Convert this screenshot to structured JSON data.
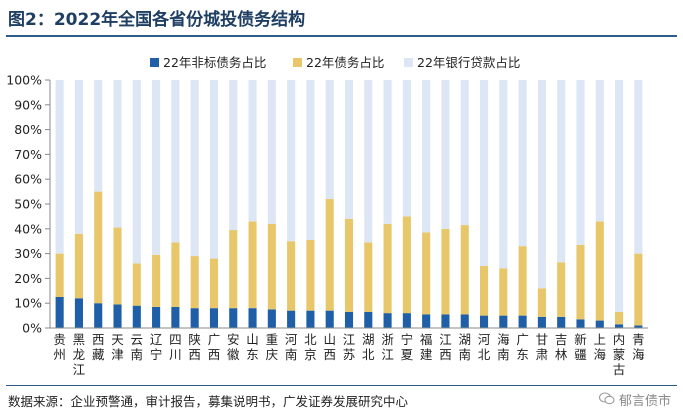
{
  "header": {
    "title": "图2：2022年全国各省份城投债务结构"
  },
  "footer": {
    "source": "数据来源：企业预警通，审计报告，募集说明书，广发证券发展研究中心",
    "watermark": "郁言债市"
  },
  "chart_data": {
    "type": "bar",
    "stacked": true,
    "categories": [
      "贵州",
      "黑龙江",
      "西藏",
      "天津",
      "云南",
      "辽宁",
      "四川",
      "陕西",
      "广西",
      "安徽",
      "山东",
      "重庆",
      "河南",
      "北京",
      "山西",
      "江苏",
      "湖北",
      "浙江",
      "宁夏",
      "福建",
      "江西",
      "湖南",
      "河北",
      "海南",
      "广东",
      "甘肃",
      "吉林",
      "新疆",
      "上海",
      "内蒙古",
      "青海"
    ],
    "series": [
      {
        "name": "22年非标债务占比",
        "color": "#1f5fa8",
        "values": [
          12.5,
          12,
          10,
          9.5,
          9,
          8.5,
          8.5,
          8,
          8,
          8,
          8,
          7.5,
          7,
          7,
          7,
          6.5,
          6.5,
          6,
          6,
          5.5,
          5.5,
          5.5,
          5,
          5,
          5,
          4.5,
          4.5,
          3.5,
          3,
          1.5,
          1
        ]
      },
      {
        "name": "22年债务占比",
        "color": "#e8c76a",
        "values": [
          17.5,
          26,
          45,
          31,
          17,
          21,
          26,
          21,
          20,
          31.5,
          35,
          34.5,
          28,
          28.5,
          45,
          37.5,
          28,
          36,
          39,
          33,
          34.5,
          36,
          20,
          19,
          28,
          11.5,
          22,
          30,
          40,
          5,
          29
        ]
      },
      {
        "name": "22年银行贷款占比",
        "color": "#dde6f4",
        "values": [
          70,
          62,
          45,
          59.5,
          74,
          70.5,
          65.5,
          71,
          72,
          60.5,
          57,
          58,
          65,
          64.5,
          48,
          56,
          65.5,
          58,
          55,
          61.5,
          60,
          58.5,
          75,
          76,
          67,
          84,
          73.5,
          66.5,
          57,
          93.5,
          70
        ]
      }
    ],
    "y_ticks": [
      "0%",
      "10%",
      "20%",
      "30%",
      "40%",
      "50%",
      "60%",
      "70%",
      "80%",
      "90%",
      "100%"
    ],
    "ylim": [
      0,
      100
    ],
    "y_unit": "%",
    "legend": "top",
    "grid": false
  }
}
